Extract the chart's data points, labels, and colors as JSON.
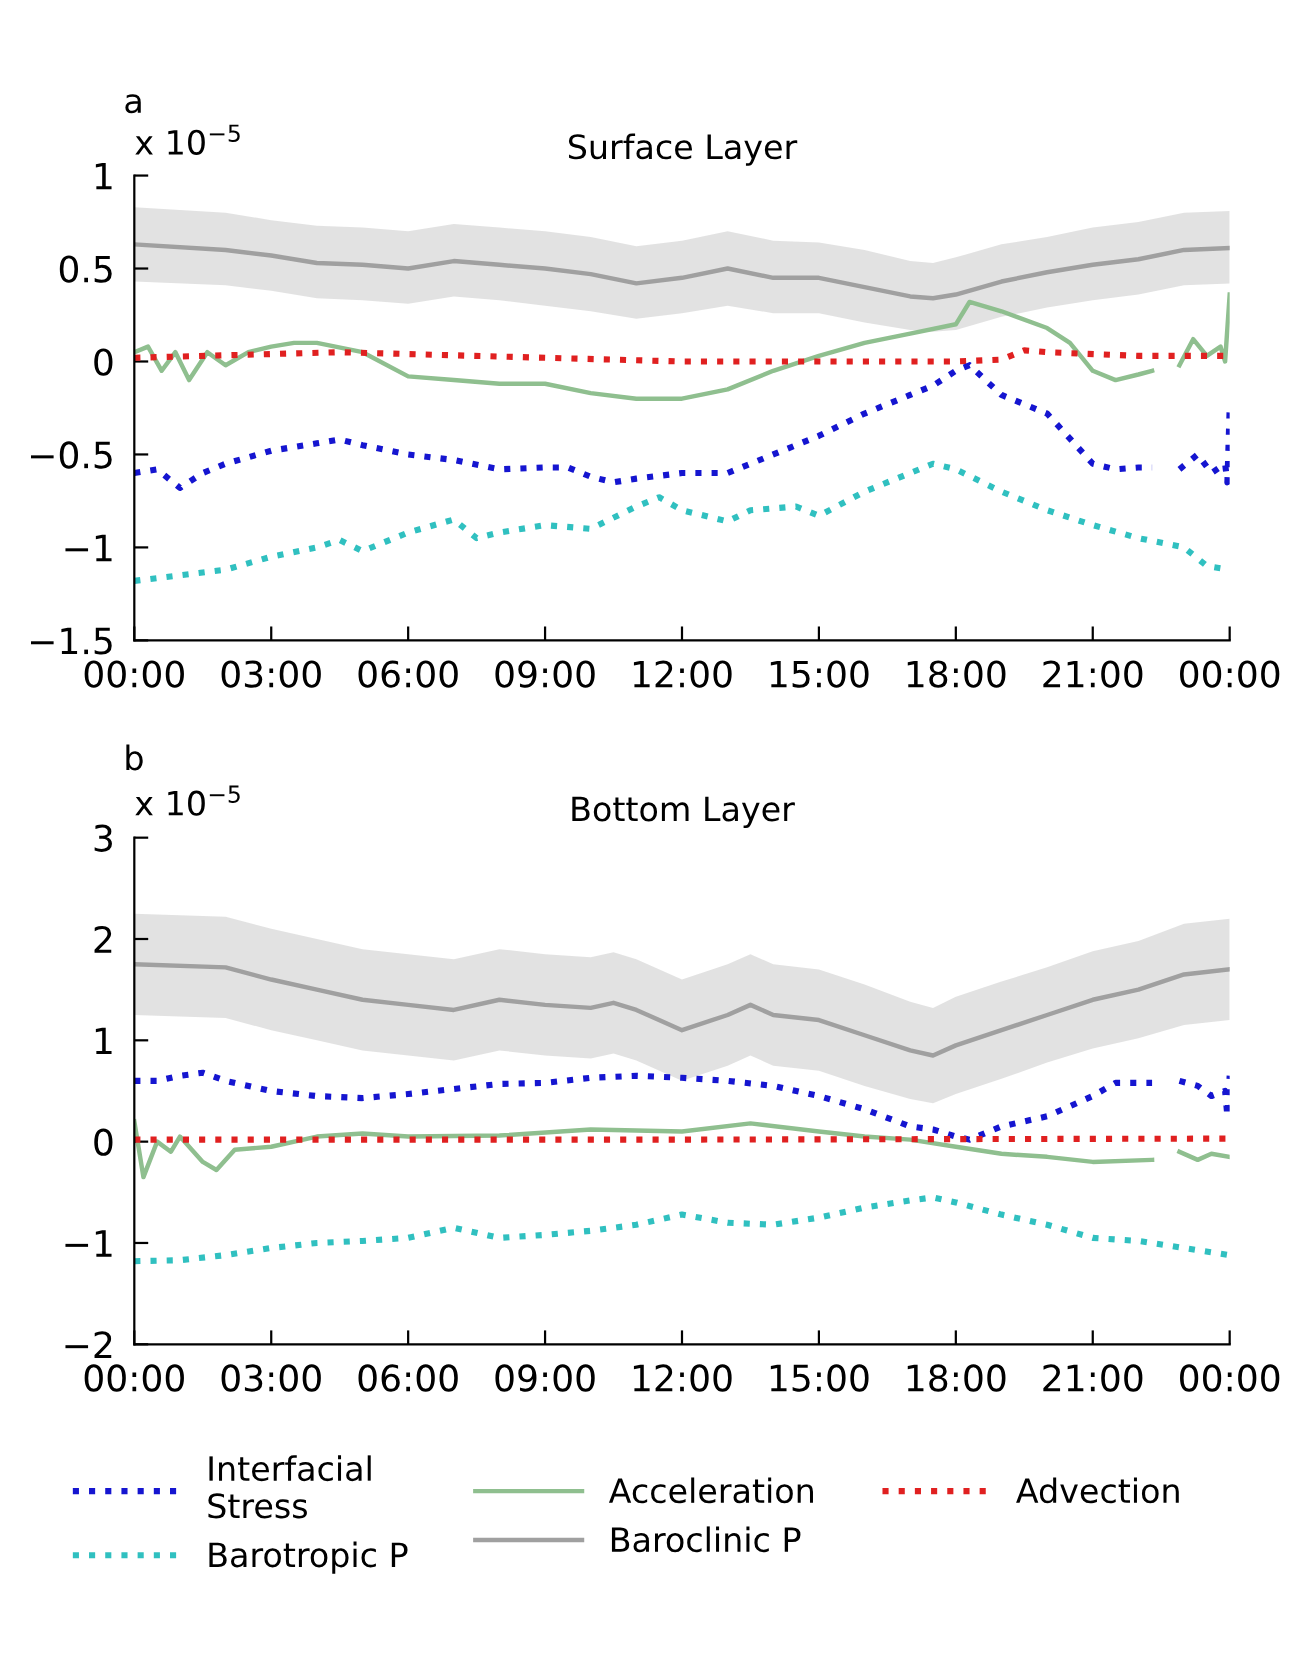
{
  "chart_data": [
    {
      "type": "line",
      "title": "Surface Layer",
      "ylabel": "x 10$^{−5}$",
      "annotations": [
        "a"
      ],
      "xlim": [
        0,
        24
      ],
      "ylim": [
        -1.5,
        1
      ],
      "xticks": [
        {
          "value": 0,
          "label": "00:00"
        },
        {
          "value": 3,
          "label": "03:00"
        },
        {
          "value": 6,
          "label": "06:00"
        },
        {
          "value": 9,
          "label": "09:00"
        },
        {
          "value": 12,
          "label": "12:00"
        },
        {
          "value": 15,
          "label": "15:00"
        },
        {
          "value": 18,
          "label": "18:00"
        },
        {
          "value": 21,
          "label": "21:00"
        },
        {
          "value": 24,
          "label": "00:00"
        }
      ],
      "yticks": [
        {
          "value": -1.5,
          "label": "−1.5"
        },
        {
          "value": -1,
          "label": "−1"
        },
        {
          "value": -0.5,
          "label": "−0.5"
        },
        0,
        0.5,
        1
      ],
      "grid": false,
      "legend": false,
      "series": [
        {
          "color": "#a0a0a0",
          "line_style": "solid",
          "x": [
            0,
            2,
            3,
            4,
            5,
            6,
            7,
            8,
            9,
            10,
            11,
            12,
            13,
            14,
            15,
            16,
            17,
            17.5,
            18,
            19,
            20,
            21,
            22,
            23,
            24
          ],
          "values": [
            0.63,
            0.6,
            0.57,
            0.53,
            0.52,
            0.5,
            0.54,
            0.52,
            0.5,
            0.47,
            0.42,
            0.45,
            0.5,
            0.45,
            0.45,
            0.4,
            0.35,
            0.34,
            0.36,
            0.43,
            0.48,
            0.52,
            0.55,
            0.6,
            0.61
          ],
          "lower": [
            0.43,
            0.41,
            0.38,
            0.34,
            0.33,
            0.31,
            0.35,
            0.33,
            0.3,
            0.27,
            0.23,
            0.26,
            0.3,
            0.26,
            0.26,
            0.21,
            0.17,
            0.16,
            0.17,
            0.24,
            0.29,
            0.33,
            0.36,
            0.41,
            0.42
          ],
          "upper": [
            0.83,
            0.8,
            0.76,
            0.73,
            0.72,
            0.7,
            0.74,
            0.72,
            0.7,
            0.67,
            0.62,
            0.65,
            0.7,
            0.65,
            0.64,
            0.6,
            0.54,
            0.53,
            0.56,
            0.63,
            0.67,
            0.72,
            0.75,
            0.8,
            0.81
          ]
        },
        {
          "color": "#8fbf8f",
          "line_style": "solid",
          "x": [
            0,
            0.3,
            0.6,
            0.9,
            1.2,
            1.6,
            2,
            2.5,
            3,
            3.5,
            4,
            5,
            6,
            7,
            8,
            9,
            10,
            11,
            12,
            13,
            14,
            15,
            16,
            17,
            18,
            18.3,
            19,
            20,
            20.5,
            21,
            21.5,
            22,
            22.3,
            22.6,
            22.9,
            23.2,
            23.5,
            23.8,
            23.9,
            24
          ],
          "values": [
            0.05,
            0.08,
            -0.05,
            0.05,
            -0.1,
            0.05,
            -0.02,
            0.05,
            0.08,
            0.1,
            0.1,
            0.05,
            -0.08,
            -0.1,
            -0.12,
            -0.12,
            -0.17,
            -0.2,
            -0.2,
            -0.15,
            -0.05,
            0.03,
            0.1,
            0.15,
            0.2,
            0.32,
            0.27,
            0.18,
            0.1,
            -0.05,
            -0.1,
            -0.07,
            -0.05,
            null,
            -0.02,
            0.12,
            0.03,
            0.08,
            0.0,
            0.36
          ]
        },
        {
          "color": "#e02020",
          "line_style": "dotted",
          "x": [
            0,
            3,
            4.5,
            6,
            9,
            12,
            15,
            18,
            19,
            19.5,
            20,
            22,
            24
          ],
          "values": [
            0.02,
            0.04,
            0.05,
            0.04,
            0.02,
            0.0,
            0.0,
            0.0,
            0.01,
            0.06,
            0.05,
            0.03,
            0.03
          ]
        },
        {
          "color": "#1515d0",
          "line_style": "dotted",
          "x": [
            0,
            0.5,
            1,
            1.5,
            2,
            3,
            4,
            4.5,
            5,
            6,
            7,
            8,
            9,
            9.5,
            10,
            10.5,
            11,
            12,
            13,
            14,
            15,
            16,
            17,
            17.5,
            18,
            18.3,
            19,
            20,
            21,
            21.5,
            22,
            22.3,
            22.6,
            22.9,
            23.3,
            23.6,
            23.9,
            23.95,
            24
          ],
          "values": [
            -0.6,
            -0.58,
            -0.68,
            -0.6,
            -0.55,
            -0.48,
            -0.44,
            -0.42,
            -0.45,
            -0.5,
            -0.53,
            -0.58,
            -0.57,
            -0.57,
            -0.62,
            -0.65,
            -0.63,
            -0.6,
            -0.6,
            -0.5,
            -0.4,
            -0.28,
            -0.18,
            -0.13,
            -0.05,
            -0.02,
            -0.18,
            -0.28,
            -0.55,
            -0.58,
            -0.57,
            -0.57,
            null,
            -0.58,
            -0.5,
            -0.6,
            -0.55,
            -0.65,
            -0.25
          ]
        },
        {
          "color": "#30c0c0",
          "line_style": "dotted",
          "x": [
            0,
            1,
            2,
            3,
            4,
            4.5,
            5,
            6,
            7,
            7.5,
            8,
            9,
            10,
            11,
            11.5,
            12,
            13,
            13.5,
            14.5,
            15,
            16,
            17,
            17.5,
            18,
            19,
            20,
            21,
            22,
            23,
            23.5,
            24
          ],
          "values": [
            -1.18,
            -1.15,
            -1.12,
            -1.05,
            -1.0,
            -0.96,
            -1.02,
            -0.92,
            -0.85,
            -0.95,
            -0.92,
            -0.88,
            -0.9,
            -0.78,
            -0.73,
            -0.8,
            -0.86,
            -0.8,
            -0.78,
            -0.83,
            -0.7,
            -0.6,
            -0.55,
            -0.58,
            -0.7,
            -0.8,
            -0.88,
            -0.95,
            -1.0,
            -1.1,
            -1.12
          ]
        }
      ]
    },
    {
      "type": "line",
      "title": "Bottom Layer",
      "ylabel": "x 10$^{−5}$",
      "annotations": [
        "b"
      ],
      "xlim": [
        0,
        24
      ],
      "ylim": [
        -2,
        3
      ],
      "xticks": [
        {
          "value": 0,
          "label": "00:00"
        },
        {
          "value": 3,
          "label": "03:00"
        },
        {
          "value": 6,
          "label": "06:00"
        },
        {
          "value": 9,
          "label": "09:00"
        },
        {
          "value": 12,
          "label": "12:00"
        },
        {
          "value": 15,
          "label": "15:00"
        },
        {
          "value": 18,
          "label": "18:00"
        },
        {
          "value": 21,
          "label": "21:00"
        },
        {
          "value": 24,
          "label": "00:00"
        }
      ],
      "yticks": [
        {
          "value": -2,
          "label": "−2"
        },
        {
          "value": -1,
          "label": "−1"
        },
        0,
        1,
        2,
        3
      ],
      "grid": false,
      "legend": "bottom",
      "series": [
        {
          "name": "Interfacial\nStress",
          "color": "#1515d0",
          "line_style": "dotted",
          "x": [
            0,
            0.5,
            1,
            1.5,
            2,
            3,
            4,
            5,
            6,
            7,
            8,
            9,
            10,
            11,
            12,
            13,
            14,
            15,
            16,
            17,
            17.5,
            18,
            18.3,
            19,
            20,
            21,
            21.5,
            22.3,
            22.6,
            22.9,
            23.3,
            23.6,
            23.9,
            23.95,
            24
          ],
          "values": [
            0.6,
            0.6,
            0.65,
            0.68,
            0.6,
            0.5,
            0.45,
            0.43,
            0.47,
            0.52,
            0.57,
            0.58,
            0.63,
            0.65,
            0.63,
            0.6,
            0.55,
            0.45,
            0.32,
            0.15,
            0.12,
            0.05,
            0.02,
            0.15,
            0.25,
            0.45,
            0.58,
            0.58,
            null,
            0.6,
            0.55,
            0.45,
            0.5,
            0.25,
            0.65
          ]
        },
        {
          "name": "Acceleration",
          "color": "#8fbf8f",
          "line_style": "solid",
          "x": [
            0,
            0.2,
            0.5,
            0.8,
            1,
            1.5,
            1.8,
            2.2,
            3,
            4,
            5,
            6,
            8,
            10,
            12,
            13.5,
            15,
            16,
            17,
            18,
            19,
            20,
            21,
            22.3,
            22.6,
            22.9,
            23.3,
            23.6,
            24
          ],
          "values": [
            0.2,
            -0.35,
            0.0,
            -0.1,
            0.05,
            -0.2,
            -0.28,
            -0.08,
            -0.05,
            0.05,
            0.08,
            0.05,
            0.06,
            0.12,
            0.1,
            0.18,
            0.1,
            0.05,
            0.02,
            -0.05,
            -0.12,
            -0.15,
            -0.2,
            -0.18,
            null,
            -0.1,
            -0.18,
            -0.12,
            -0.15
          ]
        },
        {
          "name": "Advection",
          "color": "#e02020",
          "line_style": "dotted",
          "x": [
            0,
            12,
            24
          ],
          "values": [
            0.02,
            0.02,
            0.03
          ]
        },
        {
          "name": "Barotropic P",
          "color": "#30c0c0",
          "line_style": "dotted",
          "x": [
            0,
            1,
            2,
            3,
            4,
            5,
            6,
            7,
            8,
            9,
            10,
            11,
            12,
            13,
            14,
            15,
            16,
            17,
            17.5,
            18,
            19,
            20,
            21,
            22,
            23,
            24
          ],
          "values": [
            -1.18,
            -1.17,
            -1.12,
            -1.05,
            -1.0,
            -0.98,
            -0.95,
            -0.85,
            -0.95,
            -0.92,
            -0.88,
            -0.82,
            -0.72,
            -0.8,
            -0.82,
            -0.75,
            -0.65,
            -0.58,
            -0.55,
            -0.6,
            -0.72,
            -0.82,
            -0.95,
            -0.98,
            -1.05,
            -1.12
          ]
        },
        {
          "name": "Baroclinic P",
          "color": "#a0a0a0",
          "line_style": "solid",
          "x": [
            0,
            2,
            3,
            4,
            5,
            6,
            7,
            8,
            9,
            10,
            10.5,
            11,
            12,
            13,
            13.5,
            14,
            15,
            16,
            17,
            17.5,
            18,
            19,
            20,
            21,
            22,
            23,
            24
          ],
          "values": [
            1.75,
            1.72,
            1.6,
            1.5,
            1.4,
            1.35,
            1.3,
            1.4,
            1.35,
            1.32,
            1.37,
            1.3,
            1.1,
            1.25,
            1.35,
            1.25,
            1.2,
            1.05,
            0.9,
            0.85,
            0.95,
            1.1,
            1.25,
            1.4,
            1.5,
            1.65,
            1.7
          ],
          "lower": [
            1.25,
            1.22,
            1.1,
            1.0,
            0.9,
            0.85,
            0.8,
            0.9,
            0.85,
            0.82,
            0.87,
            0.8,
            0.6,
            0.75,
            0.85,
            0.75,
            0.7,
            0.55,
            0.42,
            0.38,
            0.47,
            0.62,
            0.78,
            0.92,
            1.02,
            1.15,
            1.2
          ],
          "upper": [
            2.25,
            2.22,
            2.1,
            2.0,
            1.9,
            1.85,
            1.8,
            1.9,
            1.85,
            1.82,
            1.87,
            1.8,
            1.6,
            1.75,
            1.85,
            1.75,
            1.7,
            1.55,
            1.38,
            1.32,
            1.43,
            1.58,
            1.72,
            1.88,
            1.98,
            2.15,
            2.2
          ]
        }
      ]
    }
  ]
}
